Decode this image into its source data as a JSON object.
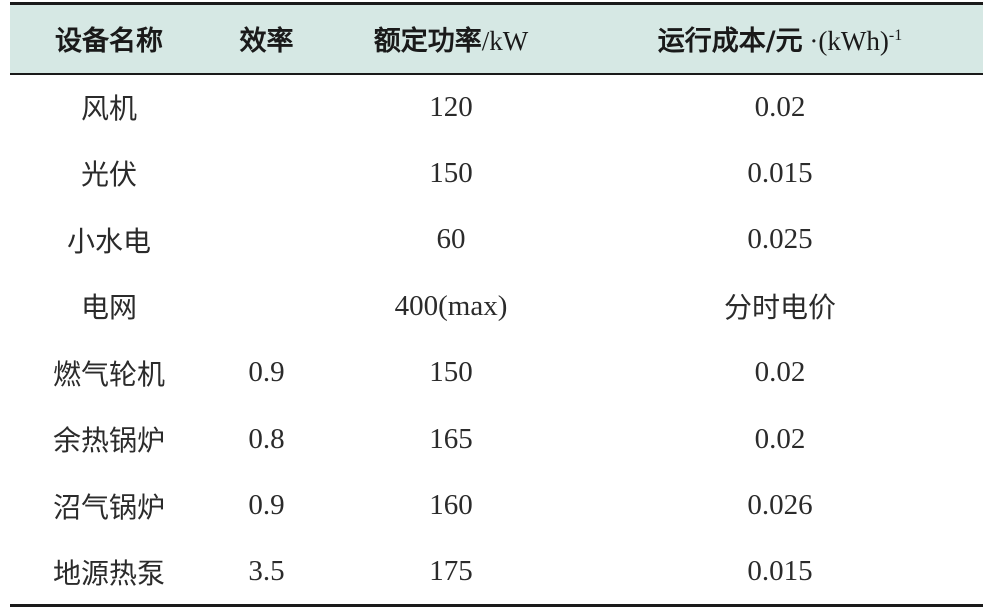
{
  "table": {
    "headers": [
      {
        "label": "设备名称",
        "unit": "",
        "sup": ""
      },
      {
        "label": "效率",
        "unit": "",
        "sup": ""
      },
      {
        "label": "额定功率",
        "unit": "/kW",
        "sup": ""
      },
      {
        "label": "运行成本/元",
        "unit": " ·(kWh)",
        "sup": "-1"
      }
    ],
    "rows": [
      {
        "name": "风机",
        "efficiency": "",
        "rated_power": "120",
        "cost": "0.02"
      },
      {
        "name": "光伏",
        "efficiency": "",
        "rated_power": "150",
        "cost": "0.015"
      },
      {
        "name": "小水电",
        "efficiency": "",
        "rated_power": "60",
        "cost": "0.025"
      },
      {
        "name": "电网",
        "efficiency": "",
        "rated_power": "400(max)",
        "cost": "分时电价"
      },
      {
        "name": "燃气轮机",
        "efficiency": "0.9",
        "rated_power": "150",
        "cost": "0.02"
      },
      {
        "name": "余热锅炉",
        "efficiency": "0.8",
        "rated_power": "165",
        "cost": "0.02"
      },
      {
        "name": "沼气锅炉",
        "efficiency": "0.9",
        "rated_power": "160",
        "cost": "0.026"
      },
      {
        "name": "地源热泵",
        "efficiency": "3.5",
        "rated_power": "175",
        "cost": "0.015"
      }
    ]
  },
  "colors": {
    "header_background": "#d6e8e4",
    "rule": "#1a1a1a",
    "text": "#2b2b2b"
  }
}
